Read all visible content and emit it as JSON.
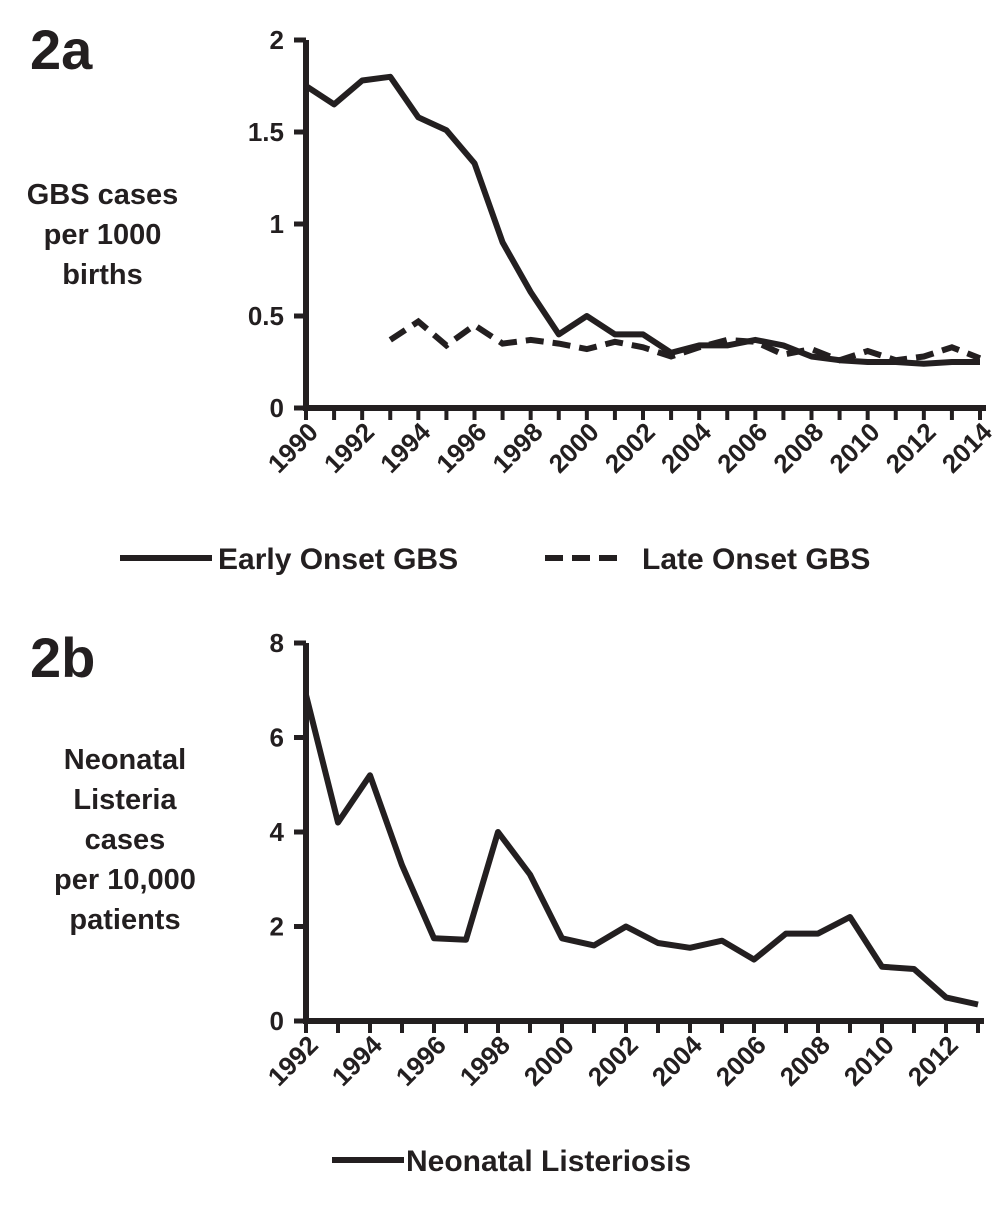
{
  "figure": {
    "panel_a_label": "2a",
    "panel_b_label": "2b",
    "ink_color": "#231f20",
    "background": "#ffffff"
  },
  "chart_data": [
    {
      "type": "line",
      "panel": "2a",
      "title": "",
      "ylabel_lines": [
        "GBS cases",
        "per 1000",
        "births"
      ],
      "xlabel": "",
      "ylim": [
        0,
        2
      ],
      "yticks": [
        0,
        0.5,
        1,
        1.5,
        2
      ],
      "ytick_labels": [
        "0",
        "0.5",
        "1",
        "1.5",
        "2"
      ],
      "xlim": [
        1990,
        2014
      ],
      "xtick_labels": [
        "1990",
        "1992",
        "1994",
        "1996",
        "1998",
        "2000",
        "2002",
        "2004",
        "2006",
        "2008",
        "2010",
        "2012",
        "2014"
      ],
      "grid": false,
      "legend_position": "bottom",
      "series": [
        {
          "name": "Early Onset GBS",
          "style": "solid",
          "x": [
            1990,
            1991,
            1992,
            1993,
            1994,
            1995,
            1996,
            1997,
            1998,
            1999,
            2000,
            2001,
            2002,
            2003,
            2004,
            2005,
            2006,
            2007,
            2008,
            2009,
            2010,
            2011,
            2012,
            2013,
            2014
          ],
          "values": [
            1.75,
            1.65,
            1.78,
            1.8,
            1.58,
            1.51,
            1.33,
            0.9,
            0.63,
            0.4,
            0.5,
            0.4,
            0.4,
            0.3,
            0.34,
            0.34,
            0.37,
            0.34,
            0.28,
            0.26,
            0.25,
            0.25,
            0.24,
            0.25,
            0.25
          ]
        },
        {
          "name": "Late Onset GBS",
          "style": "dashed",
          "x": [
            1993,
            1994,
            1995,
            1996,
            1997,
            1998,
            1999,
            2000,
            2001,
            2002,
            2003,
            2004,
            2005,
            2006,
            2007,
            2008,
            2009,
            2010,
            2011,
            2012,
            2013,
            2014
          ],
          "values": [
            0.37,
            0.47,
            0.34,
            0.45,
            0.35,
            0.37,
            0.35,
            0.32,
            0.36,
            0.33,
            0.28,
            0.33,
            0.37,
            0.36,
            0.29,
            0.32,
            0.26,
            0.31,
            0.26,
            0.28,
            0.33,
            0.27
          ]
        }
      ]
    },
    {
      "type": "line",
      "panel": "2b",
      "title": "",
      "ylabel_lines": [
        "Neonatal",
        "Listeria",
        "cases",
        "per 10,000",
        "patients"
      ],
      "xlabel": "",
      "ylim": [
        0,
        8
      ],
      "yticks": [
        0,
        2,
        4,
        6,
        8
      ],
      "ytick_labels": [
        "0",
        "2",
        "4",
        "6",
        "8"
      ],
      "xlim": [
        1992,
        2013
      ],
      "xtick_labels": [
        "1992",
        "1994",
        "1996",
        "1998",
        "2000",
        "2002",
        "2004",
        "2006",
        "2008",
        "2010",
        "2012"
      ],
      "grid": false,
      "legend_position": "bottom",
      "series": [
        {
          "name": "Neonatal Listeriosis",
          "style": "solid",
          "x": [
            1992,
            1993,
            1994,
            1995,
            1996,
            1997,
            1998,
            1999,
            2000,
            2001,
            2002,
            2003,
            2004,
            2005,
            2006,
            2007,
            2008,
            2009,
            2010,
            2011,
            2012,
            2013
          ],
          "values": [
            6.9,
            4.2,
            5.2,
            3.3,
            1.75,
            1.72,
            4.0,
            3.1,
            1.75,
            1.6,
            2.0,
            1.65,
            1.55,
            1.7,
            1.3,
            1.85,
            1.85,
            2.2,
            1.15,
            1.1,
            0.5,
            0.35
          ]
        }
      ]
    }
  ]
}
